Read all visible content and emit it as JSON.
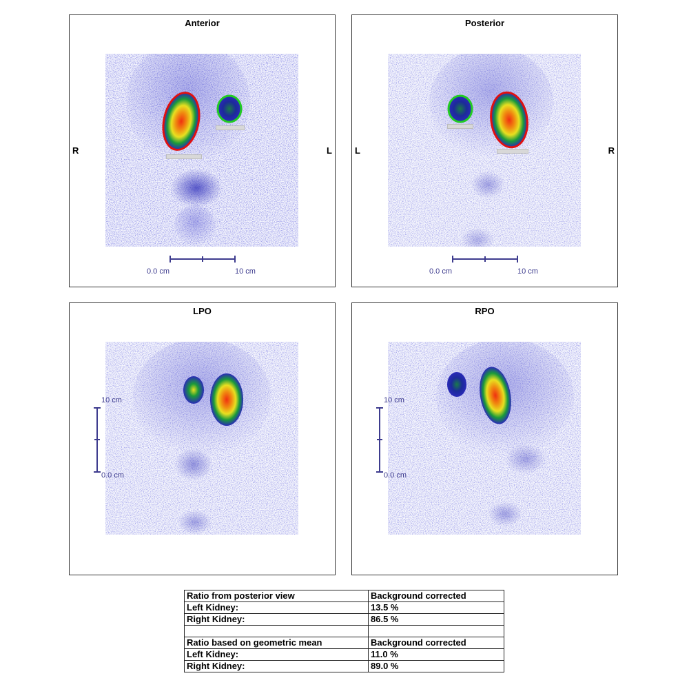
{
  "panels": {
    "anterior": {
      "title": "Anterior",
      "left_side": "R",
      "right_side": "L",
      "scale_start": "0.0 cm",
      "scale_end": "10 cm"
    },
    "posterior": {
      "title": "Posterior",
      "left_side": "L",
      "right_side": "R",
      "scale_start": "0.0 cm",
      "scale_end": "10 cm"
    },
    "lpo": {
      "title": "LPO",
      "scale_top": "10 cm",
      "scale_bottom": "0.0 cm"
    },
    "rpo": {
      "title": "RPO",
      "scale_top": "10 cm",
      "scale_bottom": "0.0 cm"
    }
  },
  "roi_colors": {
    "right_kidney": "#e01010",
    "left_kidney": "#22cc22"
  },
  "colormap": [
    "#ffffff",
    "#2a2ab8",
    "#1a9a3a",
    "#f0e020",
    "#f03010"
  ],
  "results": {
    "posterior_header": {
      "label": "Ratio from posterior view",
      "method": "Background corrected"
    },
    "posterior_rows": [
      {
        "label": "Left Kidney:",
        "value": "13.5 %"
      },
      {
        "label": "Right Kidney:",
        "value": "86.5 %"
      }
    ],
    "geomean_header": {
      "label": "Ratio based on geometric mean",
      "method": "Background corrected"
    },
    "geomean_rows": [
      {
        "label": "Left Kidney:",
        "value": "11.0 %"
      },
      {
        "label": "Right Kidney:",
        "value": "89.0 %"
      }
    ]
  }
}
